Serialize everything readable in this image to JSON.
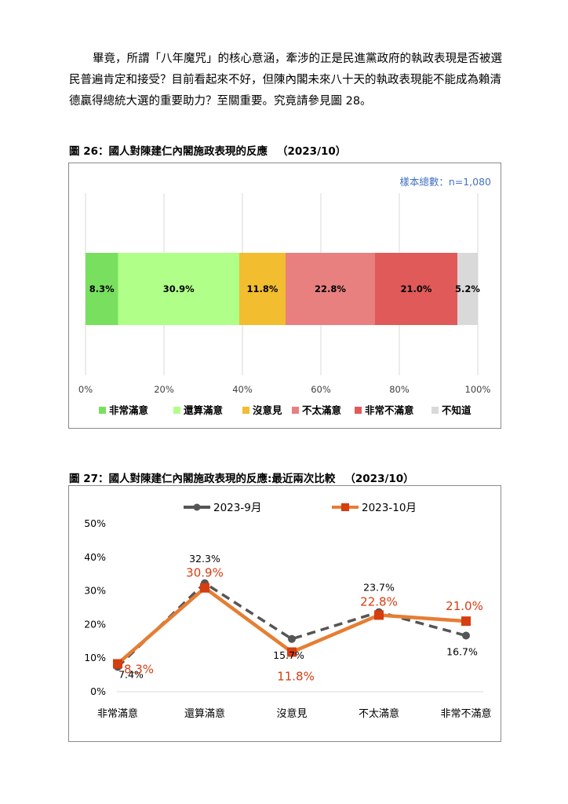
{
  "paragraph": {
    "line1": "畢竟，所謂「八年魔咒」的核心意涵，牽涉的正是民進黨政府的執政表現是否被選",
    "line2": "民普遍肯定和接受？目前看起來不好，但陳內閣未來八十天的執政表現能不能成為賴清",
    "line3": "德贏得總統大選的重要助力？至關重要。究竟請參見圖 28。"
  },
  "fig26": {
    "label": "圖 26：國人對陳建仁內閣施政表現的反應",
    "year": "（2023/10）"
  },
  "fig27": {
    "label": "圖 27：國人對陳建仁內閣施政表現的反應:最近兩次比較",
    "year": "（2023/10）"
  },
  "chart_data": [
    {
      "type": "bar",
      "orientation": "horizontal-stacked",
      "annotation": "樣本總數：n=1,080",
      "categories": [
        "非常滿意",
        "還算滿意",
        "沒意見",
        "不太滿意",
        "非常不滿意",
        "不知道"
      ],
      "values": [
        8.3,
        30.9,
        11.8,
        22.8,
        21.0,
        5.2
      ],
      "value_labels": [
        "8.3%",
        "30.9%",
        "11.8%",
        "22.8%",
        "21.0%",
        "5.2%"
      ],
      "colors": [
        "#79e05f",
        "#b0ff88",
        "#f2bd2e",
        "#e88080",
        "#e05a5a",
        "#d9d9d9"
      ],
      "xticks": [
        "0%",
        "20%",
        "40%",
        "60%",
        "80%",
        "100%"
      ],
      "xlim": [
        0,
        100
      ],
      "grid": true,
      "legend": "bottom"
    },
    {
      "type": "line",
      "categories": [
        "非常滿意",
        "還算滿意",
        "沒意見",
        "不太滿意",
        "非常不滿意"
      ],
      "series": [
        {
          "name": "2023-9月",
          "values": [
            7.4,
            32.3,
            15.7,
            23.7,
            16.7
          ],
          "labels": [
            "7.4%",
            "32.3%",
            "15.7%",
            "23.7%",
            "16.7%"
          ],
          "color": "#555555"
        },
        {
          "name": "2023-10月",
          "values": [
            8.3,
            30.9,
            11.8,
            22.8,
            21.0
          ],
          "labels": [
            "8.3%",
            "30.9%",
            "11.8%",
            "22.8%",
            "21.0%"
          ],
          "color": "#e57e33",
          "marker_color": "#d63d10",
          "label_color": "#d63d10"
        }
      ],
      "yticks": [
        "0%",
        "10%",
        "20%",
        "30%",
        "40%",
        "50%"
      ],
      "ylim": [
        0,
        50
      ],
      "grid": false,
      "legend": "top"
    }
  ]
}
